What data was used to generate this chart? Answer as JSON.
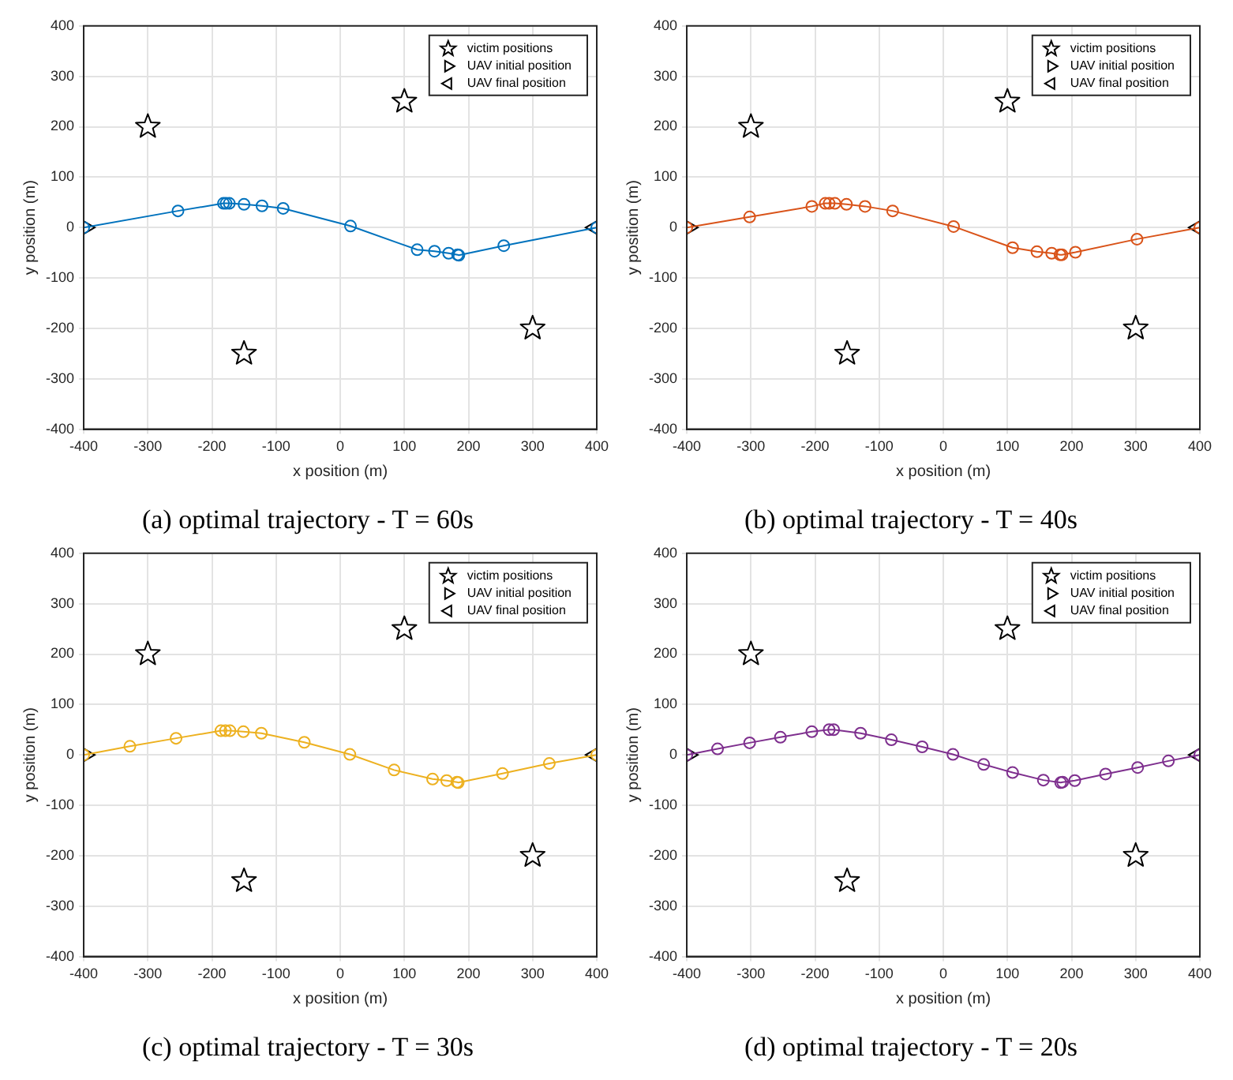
{
  "chart_data": [
    {
      "type": "line",
      "title": "(a) optimal trajectory - T = 60s",
      "xlabel": "x position (m)",
      "ylabel": "y position (m)",
      "xlim": [
        -400,
        400
      ],
      "ylim": [
        -400,
        400
      ],
      "xticks": [
        -400,
        -300,
        -200,
        -100,
        0,
        100,
        200,
        300,
        400
      ],
      "yticks": [
        -400,
        -300,
        -200,
        -100,
        0,
        100,
        200,
        300,
        400
      ],
      "grid": true,
      "legend": "top right",
      "series": [
        {
          "type": "line",
          "color": "#0072bd",
          "marker": "circle",
          "x": [
            -400,
            -253,
            -182,
            -178,
            -173,
            -150,
            -122,
            -89,
            16,
            120,
            147,
            169,
            183,
            185,
            255,
            400
          ],
          "values": [
            0,
            33,
            48,
            48,
            48,
            46,
            43,
            38,
            3,
            -44,
            -47,
            -51,
            -54,
            -55,
            -36,
            0
          ]
        },
        {
          "type": "scatter",
          "name": "victim positions",
          "color": "#000000",
          "marker": "star",
          "x": [
            -300,
            100,
            -150,
            300
          ],
          "values": [
            200,
            250,
            -250,
            -200
          ]
        },
        {
          "type": "scatter",
          "name": "UAV initial position",
          "color": "#000000",
          "marker": "triangle-right",
          "x": [
            -400
          ],
          "values": [
            0
          ]
        },
        {
          "type": "scatter",
          "name": "UAV final position",
          "color": "#000000",
          "marker": "triangle-left",
          "x": [
            400
          ],
          "values": [
            0
          ]
        }
      ]
    },
    {
      "type": "line",
      "title": "(b) optimal trajectory - T = 40s",
      "xlabel": "x position (m)",
      "ylabel": "y position (m)",
      "xlim": [
        -400,
        400
      ],
      "ylim": [
        -400,
        400
      ],
      "xticks": [
        -400,
        -300,
        -200,
        -100,
        0,
        100,
        200,
        300,
        400
      ],
      "yticks": [
        -400,
        -300,
        -200,
        -100,
        0,
        100,
        200,
        300,
        400
      ],
      "grid": true,
      "legend": "top right",
      "series": [
        {
          "type": "line",
          "color": "#d95319",
          "marker": "circle",
          "x": [
            -400,
            -302,
            -205,
            -184,
            -178,
            -169,
            -151,
            -122,
            -79,
            16,
            108,
            146,
            169,
            182,
            185,
            206,
            302,
            400
          ],
          "values": [
            0,
            21,
            42,
            48,
            48,
            48,
            46,
            42,
            33,
            2,
            -40,
            -48,
            -51,
            -54,
            -54,
            -49,
            -23,
            0
          ]
        },
        {
          "type": "scatter",
          "name": "victim positions",
          "color": "#000000",
          "marker": "star",
          "x": [
            -300,
            100,
            -150,
            300
          ],
          "values": [
            200,
            250,
            -250,
            -200
          ]
        },
        {
          "type": "scatter",
          "name": "UAV initial position",
          "color": "#000000",
          "marker": "triangle-right",
          "x": [
            -400
          ],
          "values": [
            0
          ]
        },
        {
          "type": "scatter",
          "name": "UAV final position",
          "color": "#000000",
          "marker": "triangle-left",
          "x": [
            400
          ],
          "values": [
            0
          ]
        }
      ]
    },
    {
      "type": "line",
      "title": "(c) optimal trajectory - T = 30s",
      "xlabel": "x position (m)",
      "ylabel": "y position (m)",
      "xlim": [
        -400,
        400
      ],
      "ylim": [
        -400,
        400
      ],
      "xticks": [
        -400,
        -300,
        -200,
        -100,
        0,
        100,
        200,
        300,
        400
      ],
      "yticks": [
        -400,
        -300,
        -200,
        -100,
        0,
        100,
        200,
        300,
        400
      ],
      "grid": true,
      "legend": "top right",
      "series": [
        {
          "type": "line",
          "color": "#edb120",
          "marker": "circle",
          "x": [
            -400,
            -328,
            -256,
            -186,
            -179,
            -172,
            -151,
            -123,
            -56,
            15,
            84,
            144,
            166,
            182,
            184,
            253,
            326,
            400
          ],
          "values": [
            0,
            17,
            33,
            48,
            48,
            48,
            46,
            43,
            25,
            1,
            -30,
            -48,
            -51,
            -54,
            -55,
            -37,
            -17,
            0
          ]
        },
        {
          "type": "scatter",
          "name": "victim positions",
          "color": "#000000",
          "marker": "star",
          "x": [
            -300,
            100,
            -150,
            300
          ],
          "values": [
            200,
            250,
            -250,
            -200
          ]
        },
        {
          "type": "scatter",
          "name": "UAV initial position",
          "color": "#000000",
          "marker": "triangle-right",
          "x": [
            -400
          ],
          "values": [
            0
          ]
        },
        {
          "type": "scatter",
          "name": "UAV final position",
          "color": "#000000",
          "marker": "triangle-left",
          "x": [
            400
          ],
          "values": [
            0
          ]
        }
      ]
    },
    {
      "type": "line",
      "title": "(d) optimal trajectory - T = 20s",
      "xlabel": "x position (m)",
      "ylabel": "y position (m)",
      "xlim": [
        -400,
        400
      ],
      "ylim": [
        -400,
        400
      ],
      "xticks": [
        -400,
        -300,
        -200,
        -100,
        0,
        100,
        200,
        300,
        400
      ],
      "yticks": [
        -400,
        -300,
        -200,
        -100,
        0,
        100,
        200,
        300,
        400
      ],
      "grid": true,
      "legend": "top right",
      "series": [
        {
          "type": "line",
          "color": "#7e2f8e",
          "marker": "circle",
          "x": [
            -400,
            -352,
            -302,
            -254,
            -205,
            -178,
            -171,
            -129,
            -81,
            -33,
            15,
            63,
            108,
            156,
            183,
            186,
            205,
            253,
            303,
            351,
            400
          ],
          "values": [
            0,
            12,
            24,
            35,
            46,
            50,
            50,
            43,
            30,
            16,
            1,
            -19,
            -35,
            -50,
            -55,
            -54,
            -51,
            -38,
            -25,
            -12,
            0
          ]
        },
        {
          "type": "scatter",
          "name": "victim positions",
          "color": "#000000",
          "marker": "star",
          "x": [
            -300,
            100,
            -150,
            300
          ],
          "values": [
            200,
            250,
            -250,
            -200
          ]
        },
        {
          "type": "scatter",
          "name": "UAV initial position",
          "color": "#000000",
          "marker": "triangle-right",
          "x": [
            -400
          ],
          "values": [
            0
          ]
        },
        {
          "type": "scatter",
          "name": "UAV final position",
          "color": "#000000",
          "marker": "triangle-left",
          "x": [
            400
          ],
          "values": [
            0
          ]
        }
      ]
    }
  ]
}
